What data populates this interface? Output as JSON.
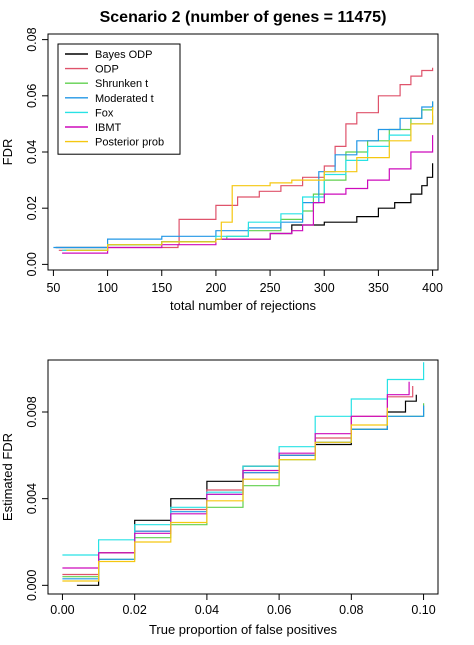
{
  "chart_data": [
    {
      "type": "line",
      "title": "Scenario 2 (number of genes = 11475)",
      "xlabel": "total number of rejections",
      "ylabel": "FDR",
      "xlim": [
        45,
        405
      ],
      "ylim": [
        -0.002,
        0.082
      ],
      "xticks": [
        "50",
        "100",
        "150",
        "200",
        "250",
        "300",
        "350",
        "400"
      ],
      "yticks": [
        "0.00",
        "0.02",
        "0.04",
        "0.06",
        "0.08"
      ],
      "legend_position": "top-left",
      "series": [
        {
          "name": "Bayes ODP",
          "color": "#000000",
          "x": [
            52,
            100,
            150,
            200,
            250,
            270,
            300,
            330,
            350,
            365,
            380,
            390,
            395,
            400
          ],
          "y": [
            0.006,
            0.007,
            0.008,
            0.009,
            0.011,
            0.014,
            0.015,
            0.017,
            0.02,
            0.022,
            0.025,
            0.028,
            0.031,
            0.036
          ]
        },
        {
          "name": "ODP",
          "color": "#DF536B",
          "x": [
            55,
            100,
            165,
            166,
            200,
            220,
            240,
            260,
            280,
            300,
            310,
            320,
            330,
            350,
            370,
            380,
            390,
            400
          ],
          "y": [
            0.005,
            0.006,
            0.007,
            0.016,
            0.021,
            0.024,
            0.026,
            0.028,
            0.031,
            0.035,
            0.042,
            0.05,
            0.054,
            0.06,
            0.064,
            0.067,
            0.069,
            0.07
          ]
        },
        {
          "name": "Shrunken t",
          "color": "#61D04F",
          "x": [
            60,
            100,
            150,
            200,
            210,
            230,
            260,
            280,
            290,
            300,
            320,
            340,
            360,
            380,
            390,
            400
          ],
          "y": [
            0.005,
            0.007,
            0.008,
            0.009,
            0.01,
            0.012,
            0.016,
            0.019,
            0.025,
            0.03,
            0.04,
            0.044,
            0.048,
            0.052,
            0.055,
            0.058
          ]
        },
        {
          "name": "Moderated t",
          "color": "#2297E6",
          "x": [
            50,
            100,
            150,
            200,
            230,
            260,
            280,
            295,
            310,
            330,
            350,
            370,
            390,
            400
          ],
          "y": [
            0.006,
            0.009,
            0.01,
            0.012,
            0.013,
            0.015,
            0.022,
            0.033,
            0.039,
            0.044,
            0.048,
            0.052,
            0.056,
            0.058
          ]
        },
        {
          "name": "Fox",
          "color": "#28E2E5",
          "x": [
            58,
            100,
            150,
            200,
            230,
            260,
            280,
            300,
            320,
            340,
            360,
            380,
            400
          ],
          "y": [
            0.005,
            0.007,
            0.008,
            0.01,
            0.015,
            0.018,
            0.024,
            0.032,
            0.037,
            0.042,
            0.046,
            0.05,
            0.053
          ]
        },
        {
          "name": "IBMT",
          "color": "#CD0BBC",
          "x": [
            58,
            100,
            150,
            200,
            250,
            270,
            280,
            290,
            300,
            320,
            340,
            360,
            380,
            400
          ],
          "y": [
            0.004,
            0.006,
            0.007,
            0.009,
            0.011,
            0.012,
            0.014,
            0.022,
            0.025,
            0.027,
            0.03,
            0.034,
            0.04,
            0.046
          ]
        },
        {
          "name": "Posterior prob",
          "color": "#F5C710",
          "x": [
            62,
            100,
            150,
            200,
            205,
            215,
            250,
            270,
            300,
            330,
            360,
            380,
            400
          ],
          "y": [
            0.005,
            0.007,
            0.008,
            0.009,
            0.015,
            0.028,
            0.029,
            0.03,
            0.033,
            0.038,
            0.044,
            0.05,
            0.056
          ]
        }
      ]
    },
    {
      "type": "line",
      "title": "",
      "xlabel": "True proportion of false positives",
      "ylabel": "Estimated FDR",
      "xlim": [
        -0.004,
        0.104
      ],
      "ylim": [
        -0.0004,
        0.0104
      ],
      "xticks": [
        "0.00",
        "0.02",
        "0.04",
        "0.06",
        "0.08",
        "0.10"
      ],
      "yticks": [
        "0.000",
        "0.004",
        "0.008"
      ],
      "series": [
        {
          "name": "Bayes ODP",
          "color": "#000000",
          "x": [
            0.004,
            0.01,
            0.02,
            0.03,
            0.04,
            0.05,
            0.06,
            0.07,
            0.08,
            0.09,
            0.095,
            0.098
          ],
          "y": [
            0.0,
            0.0015,
            0.003,
            0.004,
            0.0048,
            0.0055,
            0.006,
            0.0065,
            0.0072,
            0.008,
            0.0085,
            0.0088
          ]
        },
        {
          "name": "ODP",
          "color": "#DF536B",
          "x": [
            0.0,
            0.01,
            0.02,
            0.03,
            0.04,
            0.05,
            0.06,
            0.07,
            0.08,
            0.09,
            0.097
          ],
          "y": [
            0.0005,
            0.0015,
            0.0025,
            0.0035,
            0.0044,
            0.0052,
            0.006,
            0.0068,
            0.0078,
            0.0087,
            0.0092
          ]
        },
        {
          "name": "Shrunken t",
          "color": "#61D04F",
          "x": [
            0.0,
            0.01,
            0.02,
            0.03,
            0.04,
            0.05,
            0.06,
            0.07,
            0.08,
            0.09,
            0.1
          ],
          "y": [
            0.0004,
            0.0012,
            0.0022,
            0.0028,
            0.0036,
            0.0046,
            0.0058,
            0.0066,
            0.0072,
            0.0078,
            0.0084
          ]
        },
        {
          "name": "Moderated t",
          "color": "#2297E6",
          "x": [
            0.0,
            0.01,
            0.02,
            0.03,
            0.04,
            0.05,
            0.06,
            0.07,
            0.08,
            0.09,
            0.1
          ],
          "y": [
            0.0003,
            0.0012,
            0.0025,
            0.0034,
            0.0042,
            0.0052,
            0.006,
            0.0066,
            0.0072,
            0.0078,
            0.0083
          ]
        },
        {
          "name": "Fox",
          "color": "#28E2E5",
          "x": [
            0.0,
            0.01,
            0.02,
            0.03,
            0.04,
            0.05,
            0.06,
            0.07,
            0.08,
            0.09,
            0.1
          ],
          "y": [
            0.0014,
            0.0021,
            0.0028,
            0.0036,
            0.0043,
            0.0055,
            0.0064,
            0.0078,
            0.0086,
            0.0095,
            0.0103
          ]
        },
        {
          "name": "IBMT",
          "color": "#CD0BBC",
          "x": [
            0.0,
            0.01,
            0.02,
            0.03,
            0.04,
            0.05,
            0.06,
            0.07,
            0.08,
            0.09,
            0.096
          ],
          "y": [
            0.0008,
            0.0015,
            0.0024,
            0.0033,
            0.0042,
            0.0053,
            0.0061,
            0.007,
            0.0078,
            0.0088,
            0.0094
          ]
        },
        {
          "name": "Posterior prob",
          "color": "#F5C710",
          "x": [
            0.0,
            0.01,
            0.02,
            0.03,
            0.04,
            0.05,
            0.06,
            0.07,
            0.08,
            0.09
          ],
          "y": [
            0.0002,
            0.0011,
            0.002,
            0.0029,
            0.0039,
            0.0049,
            0.0058,
            0.0066,
            0.0074,
            0.0082
          ]
        }
      ]
    }
  ]
}
